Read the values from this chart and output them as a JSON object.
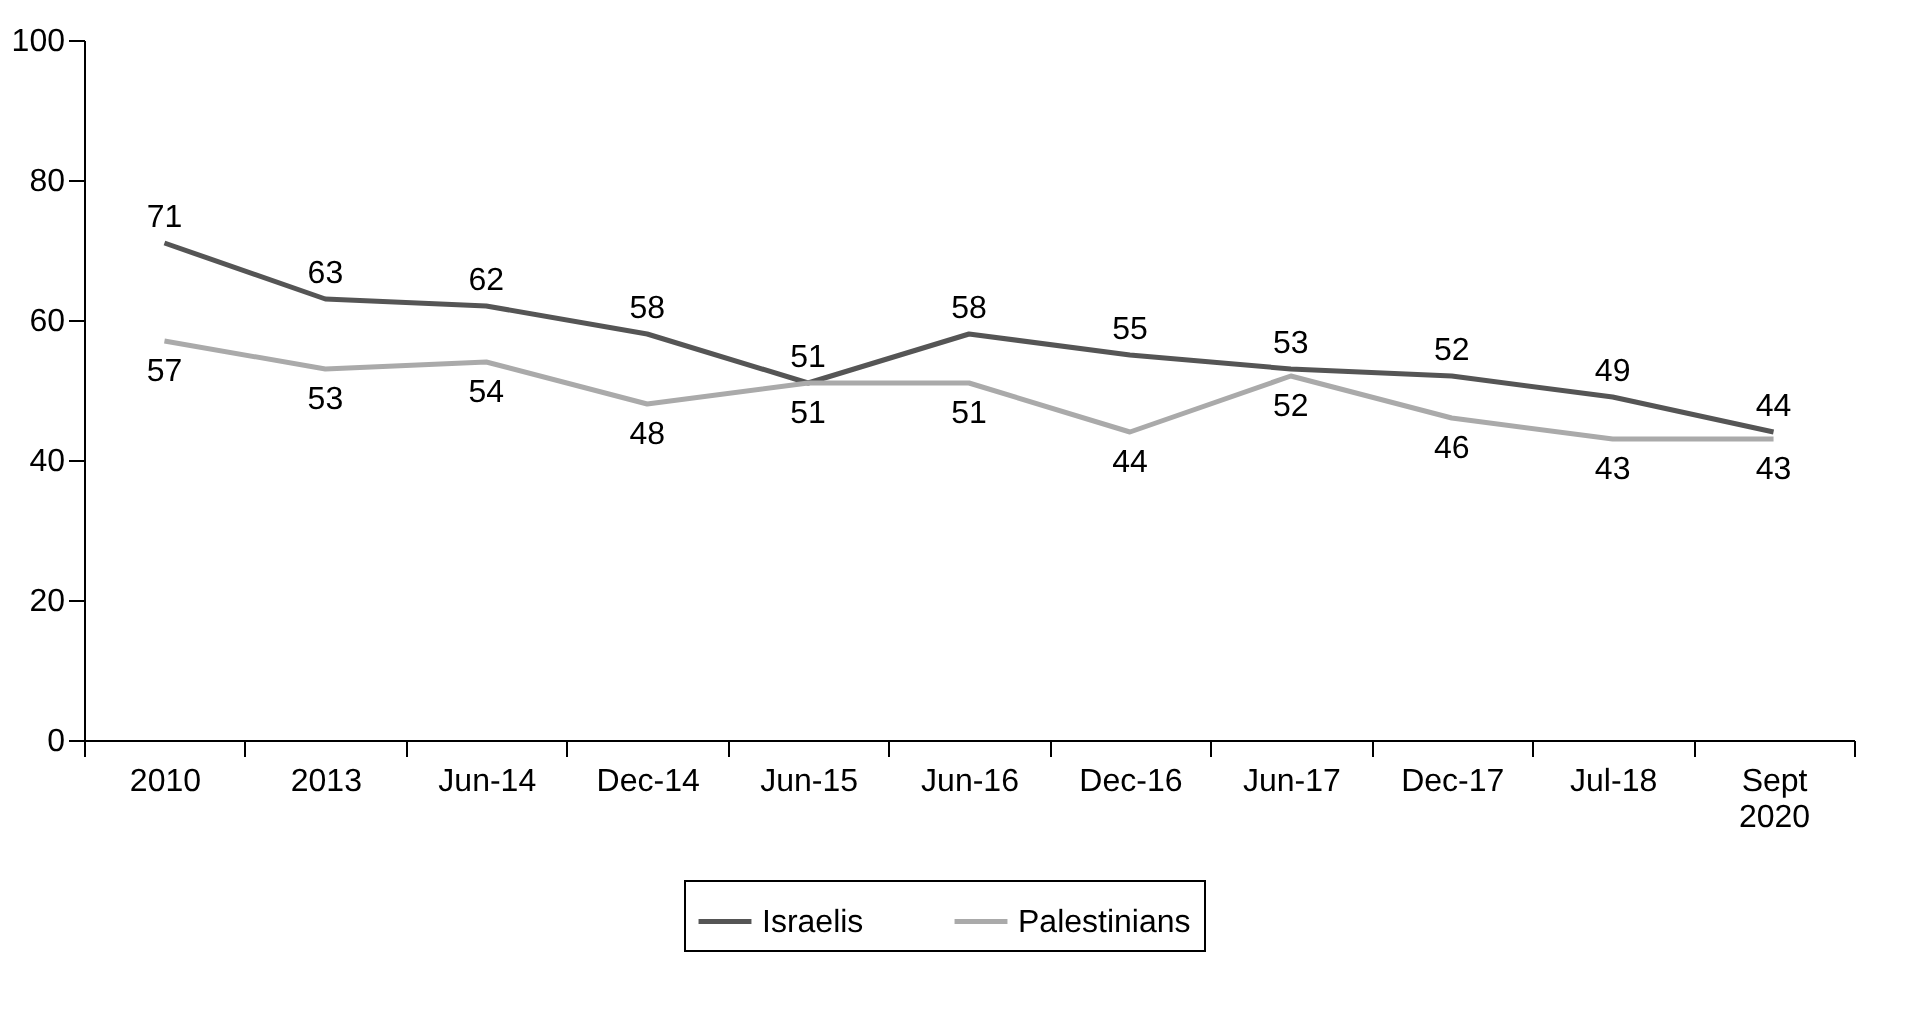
{
  "chart_data": {
    "type": "line",
    "categories": [
      "2010",
      "2013",
      "Jun-14",
      "Dec-14",
      "Jun-15",
      "Jun-16",
      "Dec-16",
      "Jun-17",
      "Dec-17",
      "Jul-18",
      "Sept 2020"
    ],
    "series": [
      {
        "name": "Israelis",
        "color": "#555555",
        "values": [
          71,
          63,
          62,
          58,
          51,
          58,
          55,
          53,
          52,
          49,
          44
        ]
      },
      {
        "name": "Palestinians",
        "color": "#aaaaaa",
        "values": [
          57,
          53,
          54,
          48,
          51,
          51,
          44,
          52,
          46,
          43,
          43
        ]
      }
    ],
    "ylim": [
      0,
      100
    ],
    "yticks": [
      0,
      20,
      40,
      60,
      80,
      100
    ],
    "data_labels": true,
    "legend": "bottom",
    "grid": false,
    "marker": "none",
    "line_style": "solid"
  }
}
